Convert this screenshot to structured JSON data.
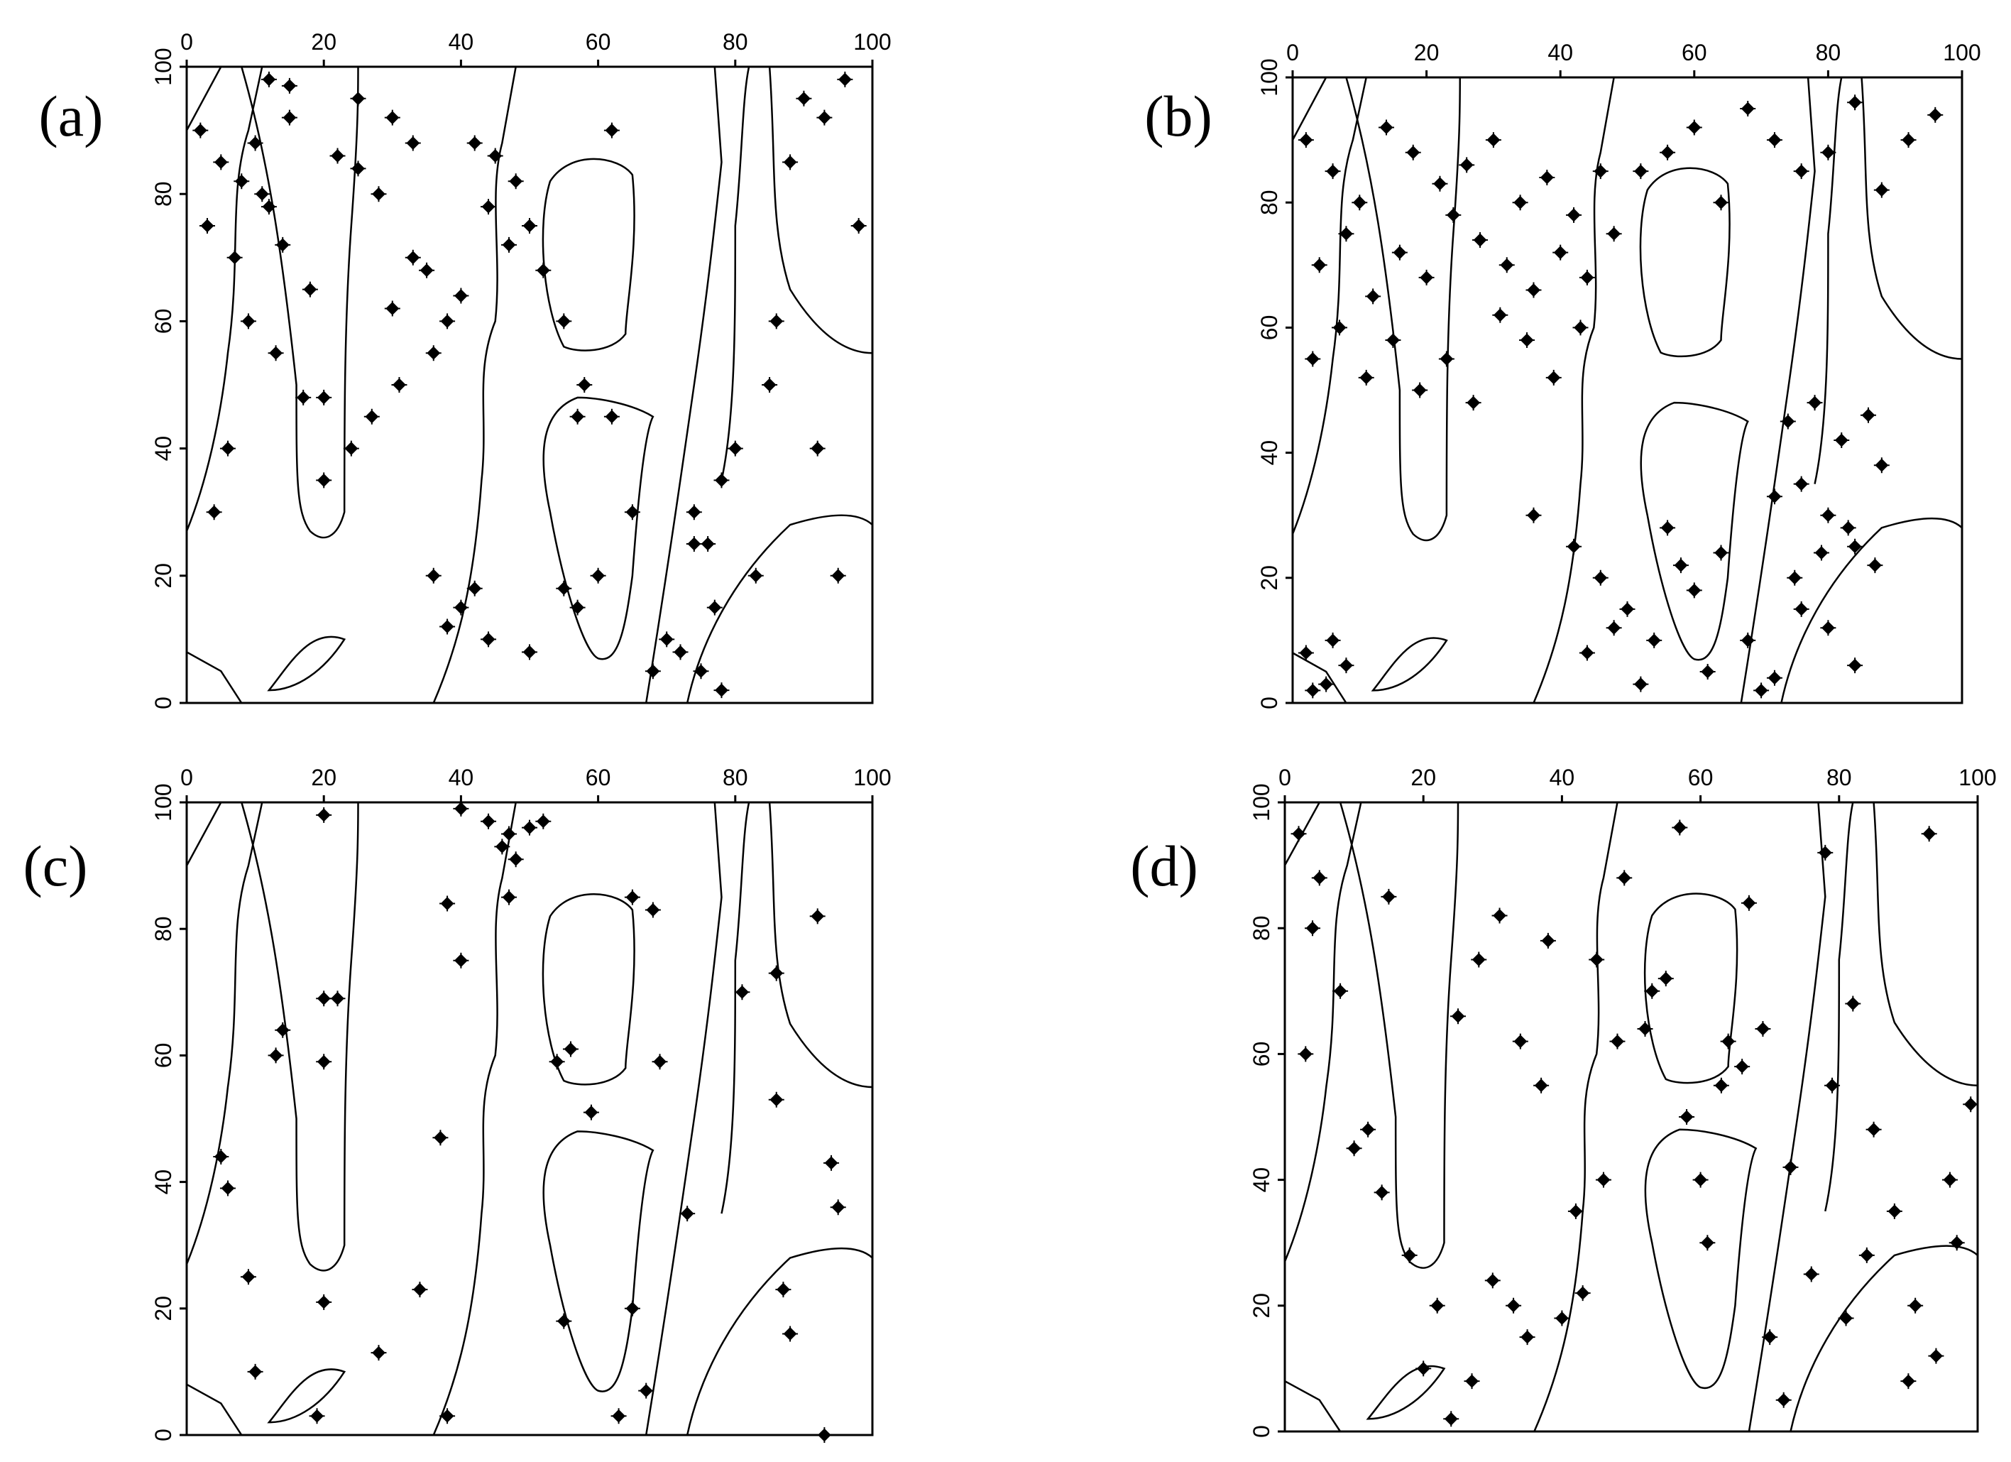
{
  "chart_data": [
    {
      "type": "scatter",
      "label": "(a)",
      "color": "#000000",
      "x": [
        2,
        5,
        8,
        10,
        12,
        15,
        3,
        7,
        11,
        14,
        18,
        22,
        25,
        28,
        30,
        33,
        36,
        40,
        42,
        45,
        48,
        50,
        38,
        35,
        31,
        27,
        24,
        20,
        17,
        13,
        9,
        6,
        4,
        44,
        47,
        52,
        55,
        58,
        62,
        60,
        57,
        65,
        70,
        74,
        78,
        80,
        83,
        86,
        88,
        90,
        93,
        96,
        98,
        76,
        77,
        75,
        78,
        74,
        40,
        42,
        38,
        44,
        36,
        55,
        57,
        50,
        68,
        72,
        85,
        92,
        95,
        62,
        25,
        15,
        12,
        30,
        33,
        20
      ],
      "y": [
        90,
        85,
        82,
        88,
        78,
        92,
        75,
        70,
        80,
        72,
        65,
        86,
        84,
        80,
        62,
        70,
        55,
        64,
        88,
        86,
        82,
        75,
        60,
        68,
        50,
        45,
        40,
        35,
        48,
        55,
        60,
        40,
        30,
        78,
        72,
        68,
        60,
        50,
        45,
        20,
        15,
        30,
        10,
        25,
        35,
        40,
        20,
        60,
        85,
        95,
        92,
        98,
        75,
        25,
        15,
        5,
        2,
        30,
        15,
        18,
        12,
        10,
        20,
        18,
        45,
        8,
        5,
        8,
        50,
        40,
        20,
        90,
        95,
        97,
        98,
        92,
        88,
        48
      ],
      "xlim": [
        0,
        100
      ],
      "ylim": [
        0,
        100
      ],
      "xticks": [
        0,
        20,
        40,
        60,
        80,
        100
      ],
      "yticks": [
        0,
        20,
        40,
        60,
        80,
        100
      ]
    },
    {
      "type": "scatter",
      "label": "(b)",
      "color": "#000000",
      "x": [
        2,
        6,
        10,
        14,
        18,
        22,
        26,
        30,
        34,
        38,
        42,
        46,
        4,
        8,
        12,
        16,
        20,
        24,
        28,
        32,
        36,
        40,
        44,
        3,
        7,
        11,
        15,
        19,
        23,
        27,
        31,
        35,
        39,
        43,
        48,
        52,
        56,
        60,
        64,
        68,
        72,
        76,
        80,
        84,
        88,
        92,
        96,
        74,
        78,
        82,
        86,
        76,
        80,
        84,
        88,
        75,
        79,
        83,
        87,
        72,
        42,
        46,
        50,
        54,
        58,
        62,
        44,
        48,
        52,
        56,
        60,
        64,
        68,
        72,
        76,
        80,
        84,
        70,
        2,
        5,
        8,
        3,
        6,
        36
      ],
      "y": [
        90,
        85,
        80,
        92,
        88,
        83,
        86,
        90,
        80,
        84,
        78,
        85,
        70,
        75,
        65,
        72,
        68,
        78,
        74,
        70,
        66,
        72,
        68,
        55,
        60,
        52,
        58,
        50,
        55,
        48,
        62,
        58,
        52,
        60,
        75,
        85,
        88,
        92,
        80,
        95,
        90,
        85,
        88,
        96,
        82,
        90,
        94,
        45,
        48,
        42,
        46,
        35,
        30,
        25,
        38,
        20,
        24,
        28,
        22,
        33,
        25,
        20,
        15,
        10,
        22,
        5,
        8,
        12,
        3,
        28,
        18,
        24,
        10,
        4,
        15,
        12,
        6,
        2,
        8,
        3,
        6,
        2,
        10,
        30
      ],
      "xlim": [
        0,
        100
      ],
      "ylim": [
        0,
        100
      ],
      "xticks": [
        0,
        20,
        40,
        60,
        80,
        100
      ],
      "yticks": [
        0,
        20,
        40,
        60,
        80,
        100
      ]
    },
    {
      "type": "scatter",
      "label": "(c)",
      "color": "#000000",
      "x": [
        40,
        44,
        47,
        50,
        46,
        48,
        52,
        20,
        38,
        40,
        47,
        65,
        68,
        92,
        20,
        22,
        14,
        20,
        13,
        5,
        6,
        37,
        54,
        56,
        59,
        69,
        86,
        86,
        94,
        95,
        9,
        20,
        34,
        55,
        65,
        87,
        88,
        28,
        10,
        19,
        38,
        63,
        67,
        93,
        73,
        81
      ],
      "y": [
        99,
        97,
        95,
        96,
        93,
        91,
        97,
        98,
        84,
        75,
        85,
        85,
        83,
        82,
        69,
        69,
        64,
        59,
        60,
        44,
        39,
        47,
        59,
        61,
        51,
        59,
        53,
        73,
        43,
        36,
        25,
        21,
        23,
        18,
        20,
        23,
        16,
        13,
        10,
        3,
        3,
        3,
        7,
        0,
        35,
        70
      ],
      "xlim": [
        0,
        100
      ],
      "ylim": [
        0,
        100
      ],
      "xticks": [
        0,
        20,
        40,
        60,
        80,
        100
      ],
      "yticks": [
        0,
        20,
        40,
        60,
        80,
        100
      ]
    },
    {
      "type": "scatter",
      "label": "(d)",
      "color": "#000000",
      "x": [
        2,
        5,
        8,
        3,
        10,
        14,
        18,
        22,
        25,
        28,
        31,
        34,
        37,
        40,
        43,
        46,
        49,
        52,
        55,
        58,
        61,
        64,
        67,
        70,
        73,
        76,
        79,
        82,
        85,
        88,
        91,
        94,
        97,
        99,
        4,
        12,
        20,
        27,
        33,
        30,
        35,
        42,
        48,
        53,
        60,
        66,
        72,
        78,
        84,
        90,
        96,
        15,
        45,
        63,
        81,
        93,
        24,
        57,
        69,
        38
      ],
      "y": [
        95,
        88,
        70,
        60,
        45,
        38,
        28,
        20,
        66,
        75,
        82,
        62,
        55,
        18,
        22,
        40,
        88,
        64,
        72,
        50,
        30,
        62,
        84,
        15,
        42,
        25,
        55,
        68,
        48,
        35,
        20,
        12,
        30,
        52,
        80,
        48,
        10,
        8,
        20,
        24,
        15,
        35,
        62,
        70,
        40,
        58,
        5,
        92,
        28,
        8,
        40,
        85,
        75,
        55,
        18,
        95,
        2,
        96,
        64,
        78
      ],
      "xlim": [
        0,
        100
      ],
      "ylim": [
        0,
        100
      ],
      "xticks": [
        0,
        20,
        40,
        60,
        80,
        100
      ],
      "yticks": [
        0,
        20,
        40,
        60,
        80,
        100
      ]
    }
  ]
}
